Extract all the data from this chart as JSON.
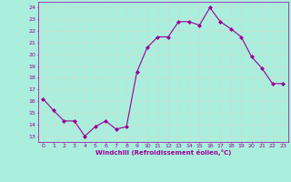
{
  "x": [
    0,
    1,
    2,
    3,
    4,
    5,
    6,
    7,
    8,
    9,
    10,
    11,
    12,
    13,
    14,
    15,
    16,
    17,
    18,
    19,
    20,
    21,
    22,
    23
  ],
  "y": [
    16.2,
    15.2,
    14.3,
    14.3,
    13.0,
    13.8,
    14.3,
    13.6,
    13.8,
    18.5,
    20.6,
    21.5,
    21.5,
    22.8,
    22.8,
    22.5,
    24.0,
    22.8,
    22.2,
    21.5,
    19.8,
    18.8,
    17.5,
    17.5
  ],
  "line_color": "#990099",
  "marker": "D",
  "marker_size": 2.0,
  "bg_color": "#aaeedd",
  "grid_color": "#ccddcc",
  "xlabel": "Windchill (Refroidissement éolien,°C)",
  "xlabel_color": "#990099",
  "tick_color": "#990099",
  "xlim": [
    -0.5,
    23.5
  ],
  "ylim": [
    12.5,
    24.5
  ],
  "yticks": [
    13,
    14,
    15,
    16,
    17,
    18,
    19,
    20,
    21,
    22,
    23,
    24
  ],
  "xticks": [
    0,
    1,
    2,
    3,
    4,
    5,
    6,
    7,
    8,
    9,
    10,
    11,
    12,
    13,
    14,
    15,
    16,
    17,
    18,
    19,
    20,
    21,
    22,
    23
  ],
  "figsize": [
    3.2,
    2.0
  ],
  "dpi": 100
}
